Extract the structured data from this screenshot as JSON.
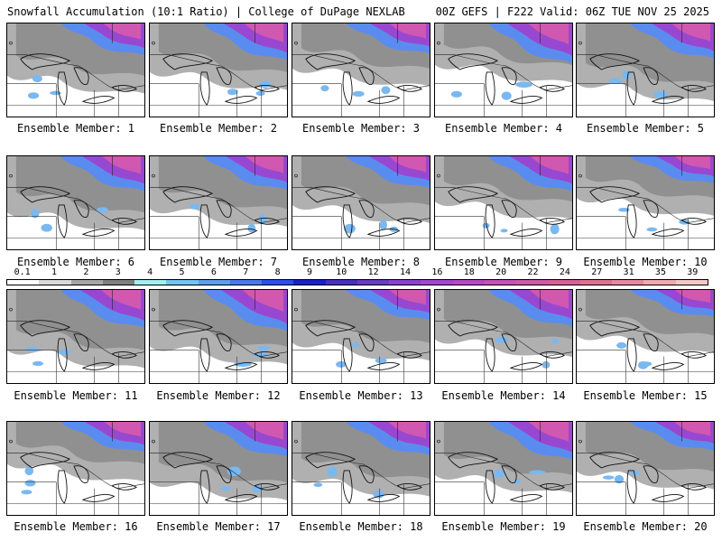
{
  "header": {
    "title": "Snowfall Accumulation (10:1 Ratio) | College of DuPage NEXLAB",
    "run_info": "00Z GEFS | F222 Valid: 06Z TUE NOV 25 2025"
  },
  "colorbar": {
    "labels": [
      "0.1",
      "1",
      "2",
      "3",
      "4",
      "5",
      "6",
      "7",
      "8",
      "9",
      "10",
      "12",
      "14",
      "16",
      "18",
      "20",
      "22",
      "24",
      "27",
      "31",
      "35",
      "39"
    ],
    "colors": [
      "#ffffff",
      "#d9d9d9",
      "#a6a6a6",
      "#808080",
      "#9ff0f0",
      "#6fc6f0",
      "#5aa0f0",
      "#4a78f0",
      "#2d4cf0",
      "#1a20c8",
      "#4830c0",
      "#6a3ac8",
      "#8a40d0",
      "#a048d0",
      "#b848c8",
      "#c850b8",
      "#d058a8",
      "#d86098",
      "#e07090",
      "#e888a0",
      "#f0a8b0",
      "#f5c8c8"
    ]
  },
  "members": [
    {
      "label": "Ensemble Member: 1",
      "intensity": 0.45
    },
    {
      "label": "Ensemble Member: 2",
      "intensity": 0.6
    },
    {
      "label": "Ensemble Member: 3",
      "intensity": 0.4
    },
    {
      "label": "Ensemble Member: 4",
      "intensity": 0.7
    },
    {
      "label": "Ensemble Member: 5",
      "intensity": 0.55
    },
    {
      "label": "Ensemble Member: 6",
      "intensity": 0.55
    },
    {
      "label": "Ensemble Member: 7",
      "intensity": 0.5
    },
    {
      "label": "Ensemble Member: 8",
      "intensity": 0.45
    },
    {
      "label": "Ensemble Member: 9",
      "intensity": 0.55
    },
    {
      "label": "Ensemble Member: 10",
      "intensity": 0.3
    },
    {
      "label": "Ensemble Member: 11",
      "intensity": 0.65
    },
    {
      "label": "Ensemble Member: 12",
      "intensity": 0.75
    },
    {
      "label": "Ensemble Member: 13",
      "intensity": 0.4
    },
    {
      "label": "Ensemble Member: 14",
      "intensity": 0.6
    },
    {
      "label": "Ensemble Member: 15",
      "intensity": 0.3
    },
    {
      "label": "Ensemble Member: 16",
      "intensity": 0.4
    },
    {
      "label": "Ensemble Member: 17",
      "intensity": 0.55
    },
    {
      "label": "Ensemble Member: 18",
      "intensity": 0.5
    },
    {
      "label": "Ensemble Member: 19",
      "intensity": 0.65
    },
    {
      "label": "Ensemble Member: 20",
      "intensity": 0.35
    }
  ]
}
